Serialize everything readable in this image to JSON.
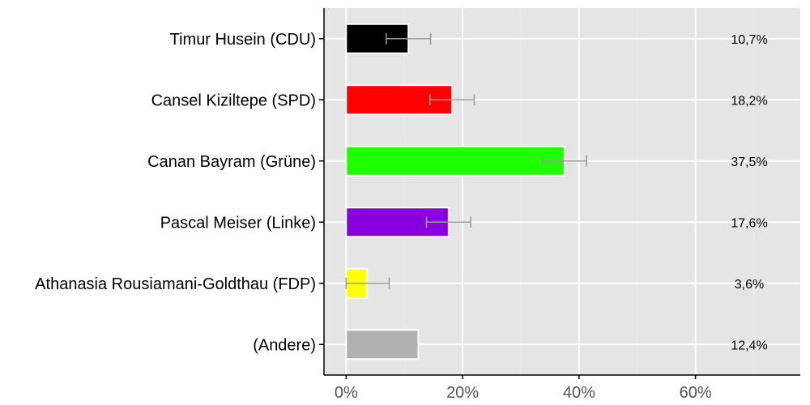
{
  "chart_data": {
    "type": "bar",
    "orientation": "horizontal",
    "categories": [
      "Timur Husein (CDU)",
      "Cansel Kiziltepe (SPD)",
      "Canan Bayram (Grüne)",
      "Pascal Meiser (Linke)",
      "Athanasia Rousiamani-Goldthau (FDP)",
      "(Andere)"
    ],
    "values": [
      10.7,
      18.2,
      37.5,
      17.6,
      3.6,
      12.4
    ],
    "value_labels": [
      "10,7%",
      "18,2%",
      "37,5%",
      "17,6%",
      "3,6%",
      "12,4%"
    ],
    "error_low": [
      6.9,
      14.4,
      33.7,
      13.8,
      0.0,
      null
    ],
    "error_high": [
      14.5,
      22.0,
      41.3,
      21.4,
      7.4,
      null
    ],
    "colors": [
      "#000000",
      "#ff0000",
      "#1eff00",
      "#8800dd",
      "#ffff00",
      "#b0b0b0"
    ],
    "error_color": "#999999",
    "background_color": "#e5e5e5",
    "xlim": [
      -3.8,
      78
    ],
    "x_ticks": [
      0,
      20,
      40,
      60
    ],
    "x_tick_labels": [
      "0%",
      "20%",
      "40%",
      "60%"
    ],
    "grid": true,
    "title": "",
    "xlabel": "",
    "ylabel": ""
  }
}
